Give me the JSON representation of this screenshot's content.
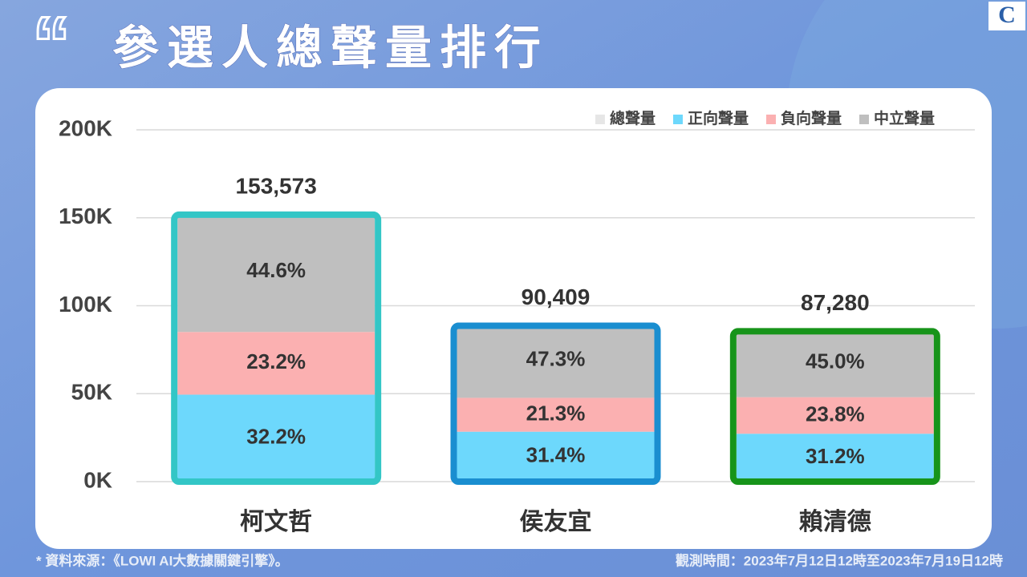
{
  "title_quote": "“",
  "logo": "C",
  "chart_data": {
    "type": "stacked_bar",
    "title": "參選人總聲量排行",
    "categories": [
      "柯文哲",
      "侯友宜",
      "賴清德"
    ],
    "total": {
      "name": "總聲量",
      "color": "#e6e6e6",
      "values": [
        153573,
        90409,
        87280
      ],
      "value_labels": [
        "153,573",
        "90,409",
        "87,280"
      ]
    },
    "series": [
      {
        "name": "正向聲量",
        "color": "#6dd8fc",
        "values": [
          32.2,
          31.4,
          31.2
        ],
        "value_labels": [
          "32.2%",
          "31.4%",
          "31.2%"
        ]
      },
      {
        "name": "負向聲量",
        "color": "#fbb0b1",
        "values": [
          23.2,
          21.3,
          23.8
        ],
        "value_labels": [
          "23.2%",
          "21.3%",
          "23.8%"
        ]
      },
      {
        "name": "中立聲量",
        "color": "#bfbfbf",
        "values": [
          44.6,
          47.3,
          45.0
        ],
        "value_labels": [
          "44.6%",
          "47.3%",
          "45.0%"
        ]
      }
    ],
    "bar_border_colors": [
      "#33c6c6",
      "#1a8ed0",
      "#17941a"
    ],
    "ylim": [
      0,
      200000
    ],
    "yticks": [
      {
        "value": 0,
        "label": "0K"
      },
      {
        "value": 50000,
        "label": "50K"
      },
      {
        "value": 100000,
        "label": "100K"
      },
      {
        "value": 150000,
        "label": "150K"
      },
      {
        "value": 200000,
        "label": "200K"
      }
    ],
    "grid": true,
    "legend": "top-right"
  },
  "footer": {
    "source": "* 資料來源：《LOWI AI大數據關鍵引擎》。",
    "period": "觀測時間：2023年7月12日12時至2023年7月19日12時"
  }
}
